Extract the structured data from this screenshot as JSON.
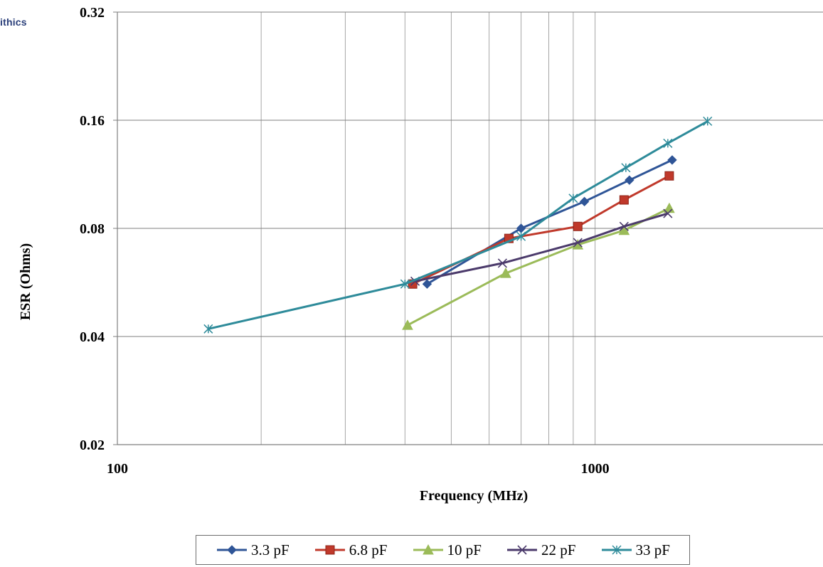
{
  "watermark": {
    "text": "ithics"
  },
  "chart_data": {
    "type": "line",
    "title": "",
    "xlabel": "Frequency (MHz)",
    "ylabel": "ESR (Ohms)",
    "x_scale": "log",
    "y_scale": "log",
    "xlim": [
      100,
      3000
    ],
    "ylim": [
      0.02,
      0.32
    ],
    "x_ticks": [
      100,
      1000
    ],
    "x_tick_labels": [
      "100",
      "1000"
    ],
    "x_minor_grid": [
      200,
      300,
      400,
      500,
      600,
      700,
      800,
      900
    ],
    "y_ticks": [
      0.02,
      0.04,
      0.08,
      0.16,
      0.32
    ],
    "y_tick_labels": [
      "0.02",
      "0.04",
      "0.08",
      "0.16",
      "0.32"
    ],
    "grid": true,
    "legend_position": "bottom",
    "series": [
      {
        "name": "3.3 pF",
        "color": "#2f5597",
        "marker": "diamond",
        "points": [
          [
            445,
            0.056
          ],
          [
            700,
            0.08
          ],
          [
            950,
            0.095
          ],
          [
            1180,
            0.109
          ],
          [
            1450,
            0.124
          ]
        ]
      },
      {
        "name": "6.8 pF",
        "color": "#c0392b",
        "marker": "square",
        "points": [
          [
            415,
            0.056
          ],
          [
            660,
            0.075
          ],
          [
            920,
            0.081
          ],
          [
            1150,
            0.096
          ],
          [
            1430,
            0.112
          ]
        ]
      },
      {
        "name": "10 pF",
        "color": "#9bbb59",
        "marker": "triangle",
        "points": [
          [
            405,
            0.043
          ],
          [
            650,
            0.06
          ],
          [
            920,
            0.072
          ],
          [
            1150,
            0.079
          ],
          [
            1430,
            0.091
          ]
        ]
      },
      {
        "name": "22 pF",
        "color": "#4b3a6b",
        "marker": "x",
        "points": [
          [
            420,
            0.057
          ],
          [
            640,
            0.064
          ],
          [
            920,
            0.073
          ],
          [
            1150,
            0.081
          ],
          [
            1420,
            0.088
          ]
        ]
      },
      {
        "name": "33 pF",
        "color": "#2e8b9a",
        "marker": "star",
        "points": [
          [
            155,
            0.042
          ],
          [
            400,
            0.056
          ],
          [
            700,
            0.076
          ],
          [
            900,
            0.097
          ],
          [
            1160,
            0.118
          ],
          [
            1420,
            0.138
          ],
          [
            1720,
            0.159
          ]
        ]
      }
    ]
  }
}
